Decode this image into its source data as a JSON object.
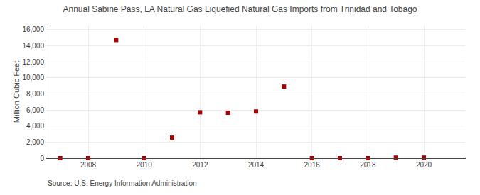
{
  "chart_data": {
    "type": "scatter",
    "title": "Annual Sabine Pass, LA Natural Gas Liquefied Natural Gas Imports from Trinidad and Tobago",
    "ylabel": "Million Cubic Feet",
    "annotations": [
      "Source: U.S. Energy Information Administration"
    ],
    "x": [
      2007,
      2008,
      2009,
      2010,
      2011,
      2012,
      2013,
      2014,
      2015,
      2016,
      2017,
      2018,
      2019,
      2020
    ],
    "values": [
      0,
      0,
      14700,
      0,
      2550,
      5700,
      5650,
      5800,
      8900,
      0,
      0,
      0,
      70,
      70
    ],
    "color": "#aa0000",
    "marker": "square",
    "xlim": [
      2006.5,
      2021.5
    ],
    "xticks": [
      2008,
      2010,
      2012,
      2014,
      2016,
      2018,
      2020
    ],
    "ylim": [
      0,
      16500
    ],
    "yticks": [
      0,
      {
        "value": 2000,
        "label": "2,000"
      },
      {
        "value": 4000,
        "label": "4,000"
      },
      {
        "value": 6000,
        "label": "6,000"
      },
      {
        "value": 8000,
        "label": "8,000"
      },
      {
        "value": 10000,
        "label": "10,000"
      },
      {
        "value": 12000,
        "label": "12,000"
      },
      {
        "value": 14000,
        "label": "14,000"
      },
      {
        "value": 16000,
        "label": "16,000"
      }
    ],
    "grid": true
  }
}
